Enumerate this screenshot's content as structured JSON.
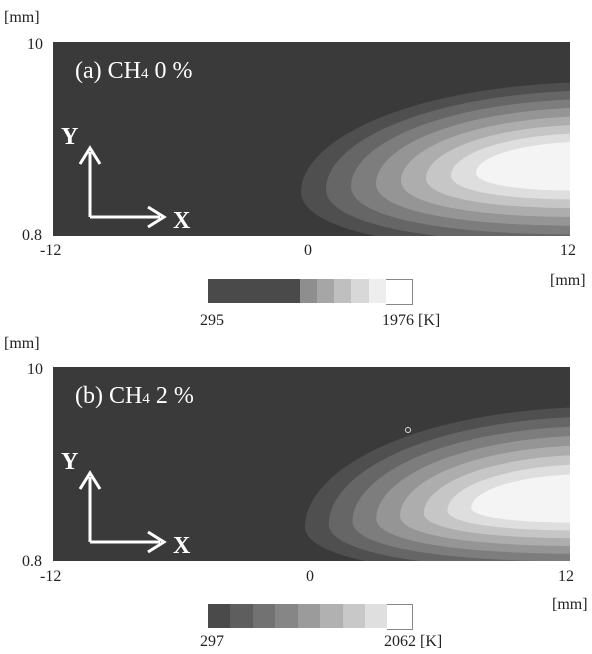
{
  "panels": [
    {
      "label_prefix": "(a) CH",
      "label_sub": "4",
      "label_suffix": " 0 %",
      "y_unit": "[mm]",
      "y_max": "10",
      "y_min": "0.8",
      "x_min": "-12",
      "x_mid": "0",
      "x_max": "12",
      "x_unit": "[mm]",
      "axis_y": "Y",
      "axis_x": "X",
      "cbar_min": "295",
      "cbar_max": "1976 [K]"
    },
    {
      "label_prefix": "(b) CH",
      "label_sub": "4",
      "label_suffix": " 2 %",
      "y_unit": "[mm]",
      "y_max": "10",
      "y_min": "0.8",
      "x_min": "-12",
      "x_mid": "0",
      "x_max": "12",
      "x_unit": "[mm]",
      "axis_y": "Y",
      "axis_x": "X",
      "cbar_min": "297",
      "cbar_max": "2062 [K]"
    }
  ],
  "colors": {
    "background": "#3a3a3a",
    "colormap": [
      "#3a3a3a",
      "#4f4f4f",
      "#666666",
      "#7d7d7d",
      "#959595",
      "#adadad",
      "#c6c6c6",
      "#dedede",
      "#f4f4f4"
    ]
  }
}
